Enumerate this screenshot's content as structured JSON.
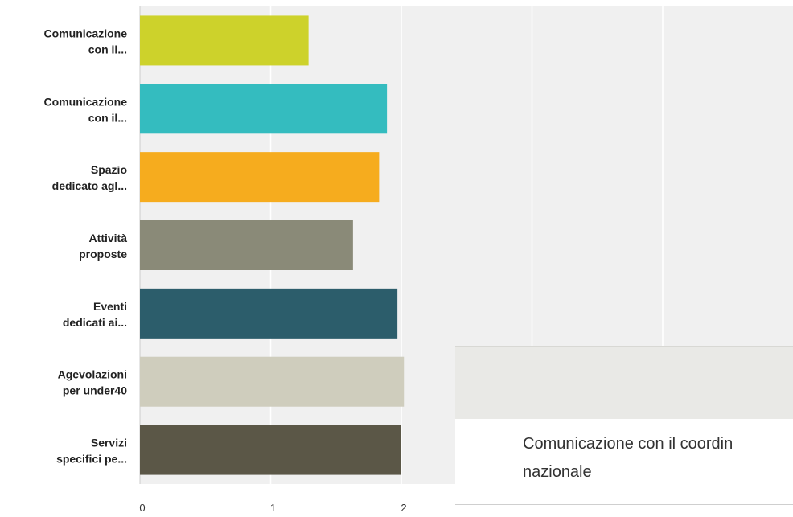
{
  "chart_data": {
    "type": "bar",
    "orientation": "horizontal",
    "categories": [
      [
        "Comunicazione",
        "con il..."
      ],
      [
        "Comunicazione",
        "con il..."
      ],
      [
        "Spazio",
        "dedicato agl..."
      ],
      [
        "Attività",
        "proposte"
      ],
      [
        "Eventi",
        "dedicati ai..."
      ],
      [
        "Agevolazioni",
        "per under40"
      ],
      [
        "Servizi",
        "specifici pe..."
      ]
    ],
    "values": [
      1.29,
      1.89,
      1.83,
      1.63,
      1.97,
      2.02,
      2.0
    ],
    "colors": [
      "#cdd22b",
      "#34bcbf",
      "#f6ac1e",
      "#8a8a78",
      "#2c5d6b",
      "#cfcdbd",
      "#5b5747"
    ],
    "x_ticks": [
      "0",
      "1",
      "2"
    ],
    "xlim": [
      0,
      5
    ],
    "grid": true
  },
  "tooltip": {
    "line1": "Comunicazione con il coordin",
    "line2": "nazionale"
  }
}
